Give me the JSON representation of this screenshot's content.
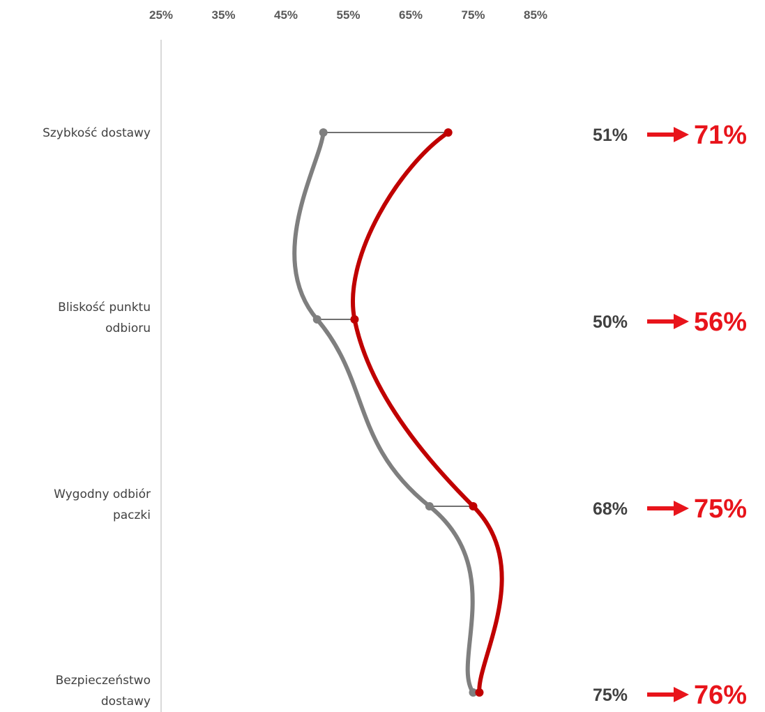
{
  "chart_data": {
    "type": "line",
    "orientation": "vertical-category",
    "x_ticks": [
      "25%",
      "35%",
      "45%",
      "55%",
      "65%",
      "75%",
      "85%"
    ],
    "xlim": [
      25,
      85
    ],
    "x_tick_values": [
      25,
      35,
      45,
      55,
      65,
      75,
      85
    ],
    "categories": [
      [
        "Szybkość dostawy"
      ],
      [
        "Bliskość punktu",
        "odbioru"
      ],
      [
        "Wygodny odbiór",
        "paczki"
      ],
      [
        "Bezpieczeństwo",
        "dostawy"
      ]
    ],
    "series": [
      {
        "values": [
          51,
          50,
          68,
          75
        ],
        "color": "#7f7f7f"
      },
      {
        "values": [
          71,
          56,
          75,
          76
        ],
        "color": "#c00000"
      }
    ],
    "annotations": [
      {
        "before": "51%",
        "after": "71%"
      },
      {
        "before": "50%",
        "after": "56%"
      },
      {
        "before": "68%",
        "after": "75%"
      },
      {
        "before": "75%",
        "after": "76%"
      }
    ],
    "legend": "none",
    "grid": false,
    "colors": {
      "axis": "#d9d9d9",
      "connector": "#404040",
      "arrow": "#e8141b",
      "after_text": "#e8141b"
    }
  }
}
